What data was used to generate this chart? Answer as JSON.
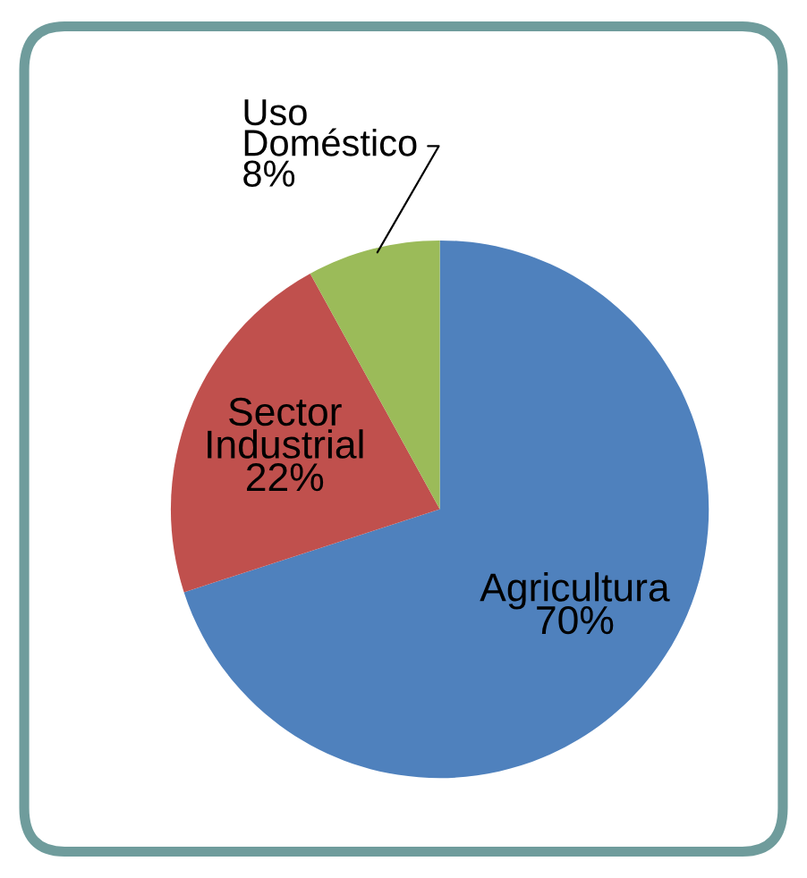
{
  "chart_data": {
    "type": "pie",
    "categories": [
      "Agricultura",
      "Sector Industrial",
      "Uso Doméstico"
    ],
    "values": [
      70,
      22,
      8
    ],
    "colors": [
      "#4f81bd",
      "#c0504d",
      "#9bbb59"
    ],
    "value_labels": [
      "70%",
      "22%",
      "8%"
    ]
  }
}
